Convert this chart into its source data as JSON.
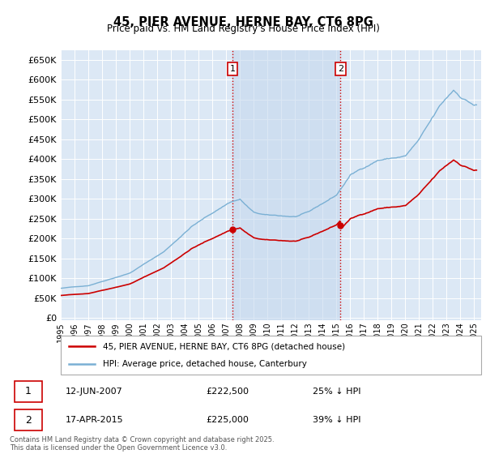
{
  "title": "45, PIER AVENUE, HERNE BAY, CT6 8PG",
  "subtitle": "Price paid vs. HM Land Registry's House Price Index (HPI)",
  "yticks": [
    0,
    50000,
    100000,
    150000,
    200000,
    250000,
    300000,
    350000,
    400000,
    450000,
    500000,
    550000,
    600000,
    650000
  ],
  "xlim_start": 1995.0,
  "xlim_end": 2025.5,
  "ylim": [
    -5000,
    675000
  ],
  "plot_bg": "#dce8f5",
  "grid_color": "#c8d8e8",
  "hpi_color": "#7ab0d4",
  "price_color": "#cc0000",
  "vline_color": "#cc0000",
  "shade_color": "#c5d8ee",
  "marker1_x": 2007.45,
  "marker2_x": 2015.3,
  "sale1_price": 222500,
  "sale2_price": 225000,
  "legend_line1": "45, PIER AVENUE, HERNE BAY, CT6 8PG (detached house)",
  "legend_line2": "HPI: Average price, detached house, Canterbury",
  "ann1_date": "12-JUN-2007",
  "ann1_price": "£222,500",
  "ann1_pct": "25% ↓ HPI",
  "ann2_date": "17-APR-2015",
  "ann2_price": "£225,000",
  "ann2_pct": "39% ↓ HPI",
  "footnote": "Contains HM Land Registry data © Crown copyright and database right 2025.\nThis data is licensed under the Open Government Licence v3.0."
}
